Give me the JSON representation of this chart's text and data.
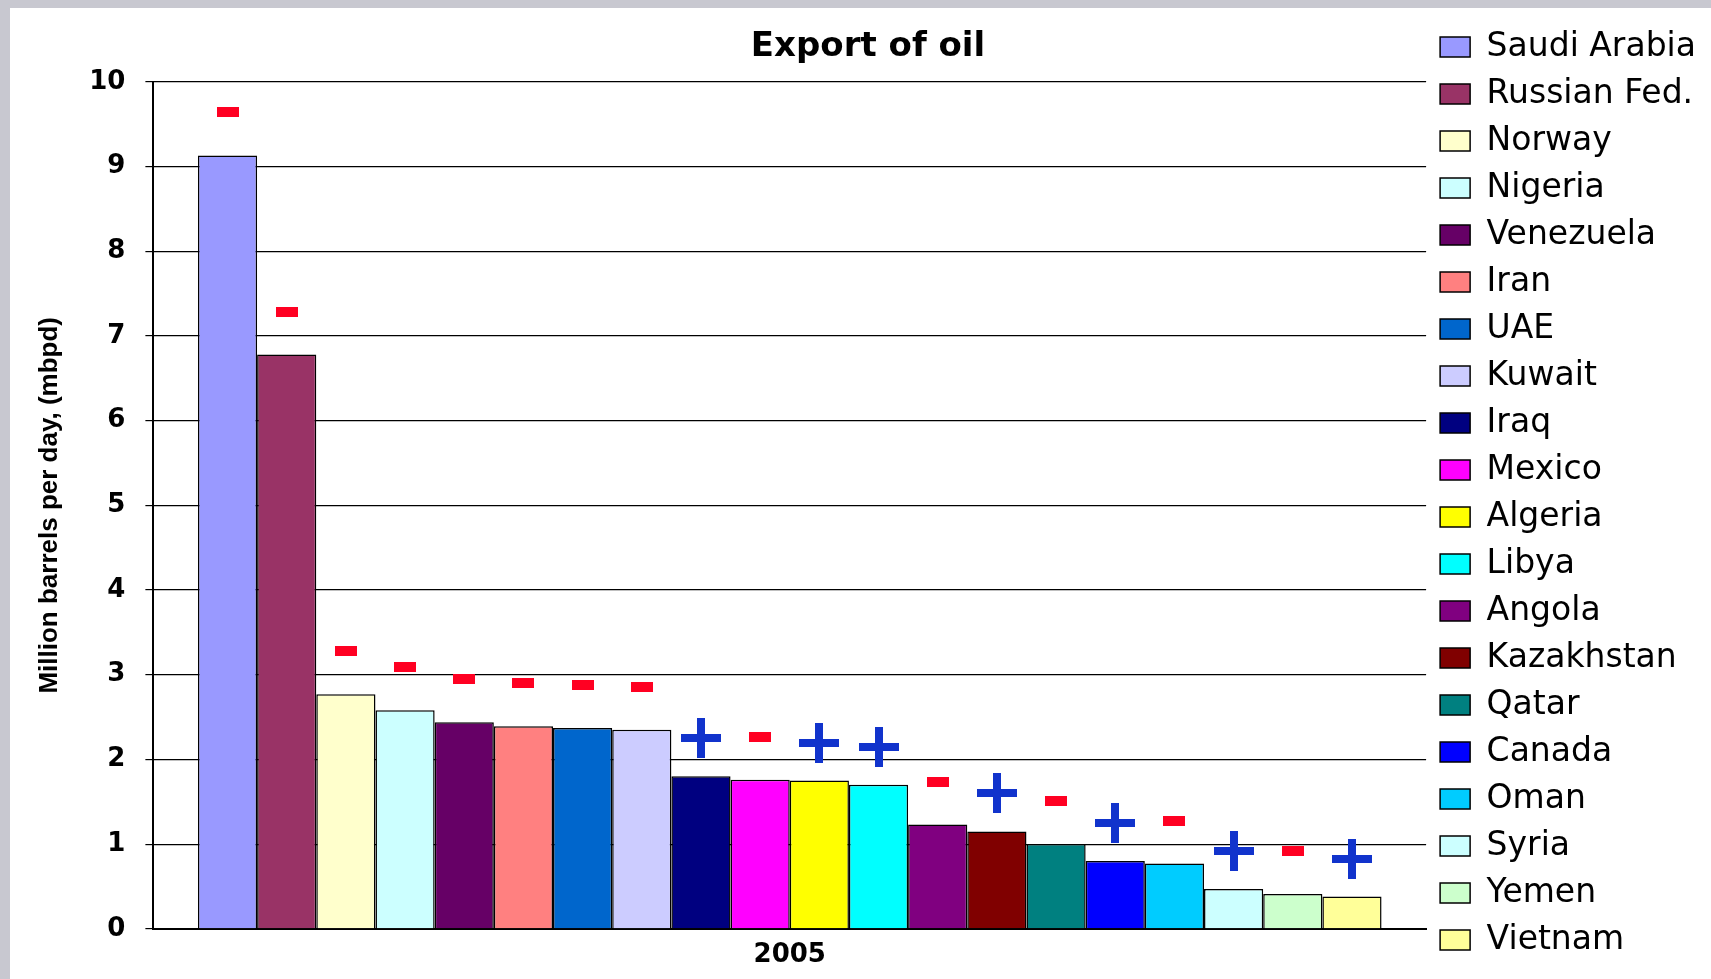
{
  "chart_data": {
    "type": "bar",
    "title": "Export of oil",
    "ylabel": "Million barrels per day, (mbpd)",
    "categories": [
      "2005"
    ],
    "ylim": [
      0,
      10
    ],
    "yticks": [
      0,
      1,
      2,
      3,
      4,
      5,
      6,
      7,
      8,
      9,
      10
    ],
    "grid": "y",
    "legend": "right",
    "series": [
      {
        "name": "Saudi Arabia",
        "color": "#9999ff",
        "values": [
          9.13
        ]
      },
      {
        "name": "Russian Fed.",
        "color": "#993366",
        "values": [
          6.78
        ]
      },
      {
        "name": "Norway",
        "color": "#ffffcc",
        "values": [
          2.77
        ]
      },
      {
        "name": "Nigeria",
        "color": "#ccffff",
        "values": [
          2.58
        ]
      },
      {
        "name": "Venezuela",
        "color": "#660066",
        "values": [
          2.44
        ]
      },
      {
        "name": "Iran",
        "color": "#ff8080",
        "values": [
          2.39
        ]
      },
      {
        "name": "UAE",
        "color": "#0066cc",
        "values": [
          2.37
        ]
      },
      {
        "name": "Kuwait",
        "color": "#ccccff",
        "values": [
          2.35
        ]
      },
      {
        "name": "Iraq",
        "color": "#000080",
        "values": [
          1.8
        ]
      },
      {
        "name": "Mexico",
        "color": "#ff00ff",
        "values": [
          1.76
        ]
      },
      {
        "name": "Algeria",
        "color": "#ffff00",
        "values": [
          1.75
        ]
      },
      {
        "name": "Libya",
        "color": "#00ffff",
        "values": [
          1.7
        ]
      },
      {
        "name": "Angola",
        "color": "#800080",
        "values": [
          1.23
        ]
      },
      {
        "name": "Kazakhstan",
        "color": "#800000",
        "values": [
          1.15
        ]
      },
      {
        "name": "Qatar",
        "color": "#008080",
        "values": [
          1.0
        ]
      },
      {
        "name": "Canada",
        "color": "#0000ff",
        "values": [
          0.8
        ]
      },
      {
        "name": "Oman",
        "color": "#00ccff",
        "values": [
          0.77
        ]
      },
      {
        "name": "Syria",
        "color": "#ccffff",
        "values": [
          0.47
        ]
      },
      {
        "name": "Yemen",
        "color": "#ccffcc",
        "values": [
          0.41
        ]
      },
      {
        "name": "Vietnam",
        "color": "#ffff99",
        "values": [
          0.38
        ]
      }
    ]
  }
}
